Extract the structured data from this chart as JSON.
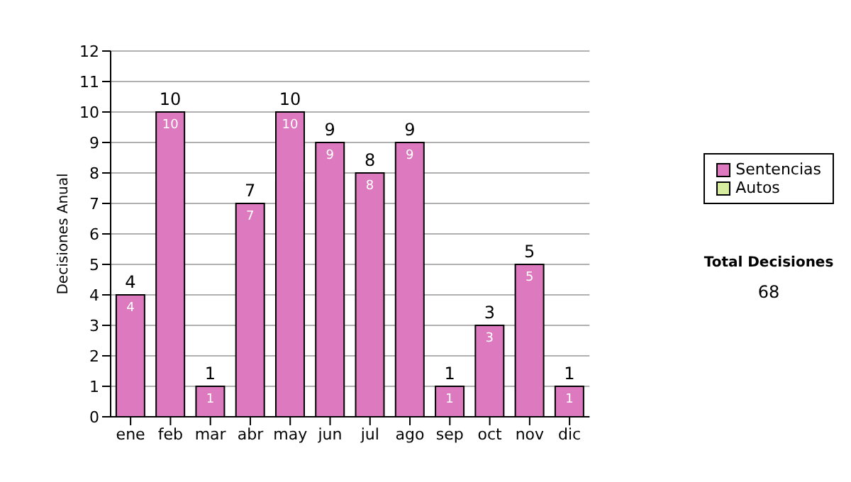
{
  "chart_data": {
    "type": "bar",
    "stacked": true,
    "ylabel": "Decisiones Anual",
    "categories": [
      "ene",
      "feb",
      "mar",
      "abr",
      "may",
      "jun",
      "jul",
      "ago",
      "sep",
      "oct",
      "nov",
      "dic"
    ],
    "series": [
      {
        "name": "Sentencias",
        "color": "#dd7abf",
        "values": [
          4,
          10,
          1,
          7,
          10,
          9,
          8,
          9,
          1,
          3,
          5,
          1
        ],
        "value_labels": [
          "4",
          "10",
          "1",
          "7",
          "10",
          "9",
          "8",
          "9",
          "1",
          "3",
          "5",
          "1"
        ]
      },
      {
        "name": "Autos",
        "color": "#d8eca0",
        "values": [
          0,
          0,
          0,
          0,
          0,
          0,
          0,
          0,
          0,
          0,
          0,
          0
        ]
      }
    ],
    "totals": [
      "4",
      "10",
      "1",
      "7",
      "10",
      "9",
      "8",
      "9",
      "1",
      "3",
      "5",
      "1"
    ],
    "ylim": [
      0,
      12
    ],
    "yticks": [
      0,
      1,
      2,
      3,
      4,
      5,
      6,
      7,
      8,
      9,
      10,
      11,
      12
    ],
    "grid": "y",
    "legend": "right",
    "annotations": [
      "Total Decisiones",
      "68"
    ]
  }
}
